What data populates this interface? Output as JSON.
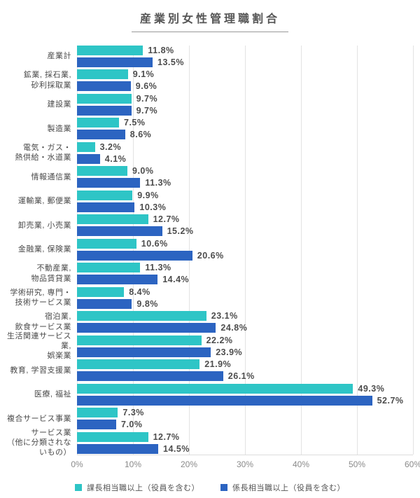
{
  "title": "産業別女性管理職割合",
  "colors": {
    "series1": "#2ec5c6",
    "series2": "#2c64c1",
    "grid": "#e3e3e3",
    "value_text": "#4d4d4d",
    "title_text": "#555555"
  },
  "chart_data": {
    "type": "bar",
    "orientation": "horizontal",
    "title": "産業別女性管理職割合",
    "categories": [
      "産業計",
      "鉱業, 採石業,\n砂利採取業",
      "建設業",
      "製造業",
      "電気・ガス・\n熱供給・水道業",
      "情報通信業",
      "運輸業, 郵便業",
      "卸売業, 小売業",
      "金融業, 保険業",
      "不動産業,\n物品賃貸業",
      "学術研究, 専門・\n技術サービス業",
      "宿泊業,\n飲食サービス業",
      "生活関連サービス業,\n娯楽業",
      "教育, 学習支援業",
      "医療, 福祉",
      "複合サービス事業",
      "サービス業\n（他に分類されないもの）"
    ],
    "series": [
      {
        "name": "課長相当職以上（役員を含む）",
        "color": "#2ec5c6",
        "values": [
          11.8,
          9.1,
          9.7,
          7.5,
          3.2,
          9.0,
          9.9,
          12.7,
          10.6,
          11.3,
          8.4,
          23.1,
          22.2,
          21.9,
          49.3,
          7.3,
          12.7
        ]
      },
      {
        "name": "係長相当職以上（役員を含む）",
        "color": "#2c64c1",
        "values": [
          13.5,
          9.6,
          9.7,
          8.6,
          4.1,
          11.3,
          10.3,
          15.2,
          20.6,
          14.4,
          9.8,
          24.8,
          23.9,
          26.1,
          52.7,
          7.0,
          14.5
        ]
      }
    ],
    "value_suffix": "%",
    "xlim": [
      0,
      60
    ],
    "x_ticks": [
      "0%",
      "10%",
      "20%",
      "30%",
      "40%",
      "50%",
      "60%"
    ],
    "grid": true,
    "legend_position": "bottom"
  }
}
